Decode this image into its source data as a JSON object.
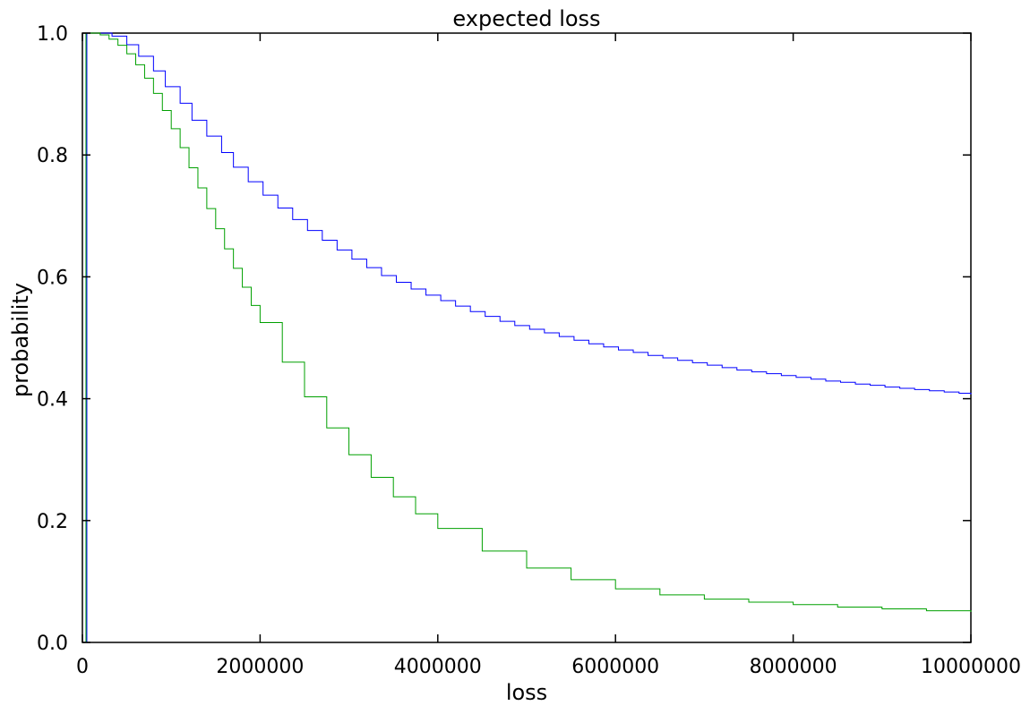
{
  "chart_data": {
    "type": "line",
    "title": "expected loss",
    "xlabel": "loss",
    "ylabel": "probability",
    "xlim": [
      0,
      10000000
    ],
    "ylim": [
      0,
      1.0
    ],
    "x_ticks": [
      0,
      2000000,
      4000000,
      6000000,
      8000000,
      10000000
    ],
    "x_tick_labels": [
      "0",
      "2000000",
      "4000000",
      "6000000",
      "8000000",
      "10000000"
    ],
    "y_ticks": [
      0,
      0.2,
      0.4,
      0.6,
      0.8,
      1.0
    ],
    "y_tick_labels": [
      "0.0",
      "0.2",
      "0.4",
      "0.6",
      "0.8",
      "1.0"
    ],
    "grid": false,
    "series": [
      {
        "color": "#0000ff",
        "step": "post",
        "x": [
          0,
          50000,
          100000,
          166667,
          333333,
          500000,
          633333,
          800000,
          933333,
          1100000,
          1233333,
          1400000,
          1566667,
          1700000,
          1866667,
          2033333,
          2200000,
          2366667,
          2533333,
          2700000,
          2866667,
          3033333,
          3200000,
          3366667,
          3533333,
          3700000,
          3866667,
          4033333,
          4200000,
          4366667,
          4533333,
          4700000,
          4866667,
          5033333,
          5200000,
          5366667,
          5533333,
          5700000,
          5866667,
          6033333,
          6200000,
          6366667,
          6533333,
          6700000,
          6866667,
          7033333,
          7200000,
          7366667,
          7533333,
          7700000,
          7866667,
          8033333,
          8200000,
          8366667,
          8533333,
          8700000,
          8866667,
          9033333,
          9200000,
          9366667,
          9533333,
          9700000,
          9866667,
          10000000
        ],
        "y": [
          0,
          1.0,
          1.0,
          1.0,
          0.995,
          0.981,
          0.962,
          0.938,
          0.912,
          0.885,
          0.857,
          0.831,
          0.804,
          0.78,
          0.756,
          0.734,
          0.713,
          0.694,
          0.676,
          0.66,
          0.644,
          0.629,
          0.615,
          0.602,
          0.591,
          0.58,
          0.57,
          0.561,
          0.552,
          0.543,
          0.535,
          0.527,
          0.52,
          0.514,
          0.508,
          0.502,
          0.496,
          0.49,
          0.485,
          0.48,
          0.476,
          0.471,
          0.467,
          0.463,
          0.459,
          0.455,
          0.451,
          0.447,
          0.444,
          0.441,
          0.438,
          0.435,
          0.432,
          0.429,
          0.427,
          0.424,
          0.422,
          0.419,
          0.417,
          0.415,
          0.413,
          0.411,
          0.409,
          0.407
        ]
      },
      {
        "color": "#00a000",
        "step": "post",
        "x": [
          0,
          40000,
          40000,
          100000,
          200000,
          300000,
          400000,
          500000,
          600000,
          700000,
          800000,
          900000,
          1000000,
          1100000,
          1200000,
          1300000,
          1400000,
          1500000,
          1600000,
          1700000,
          1800000,
          1900000,
          2000000,
          2250000,
          2500000,
          2750000,
          3000000,
          3250000,
          3500000,
          3750000,
          4000000,
          4500000,
          5000000,
          5500000,
          6000000,
          6500000,
          7000000,
          7500000,
          8000000,
          8500000,
          9000000,
          9500000,
          10000000
        ],
        "y": [
          0,
          0,
          1.0,
          1.0,
          0.997,
          0.99,
          0.98,
          0.966,
          0.948,
          0.926,
          0.901,
          0.873,
          0.843,
          0.812,
          0.779,
          0.746,
          0.712,
          0.679,
          0.646,
          0.614,
          0.583,
          0.553,
          0.525,
          0.46,
          0.403,
          0.352,
          0.308,
          0.271,
          0.239,
          0.211,
          0.187,
          0.15,
          0.122,
          0.103,
          0.088,
          0.078,
          0.071,
          0.066,
          0.062,
          0.058,
          0.055,
          0.052,
          0.05
        ]
      }
    ]
  }
}
